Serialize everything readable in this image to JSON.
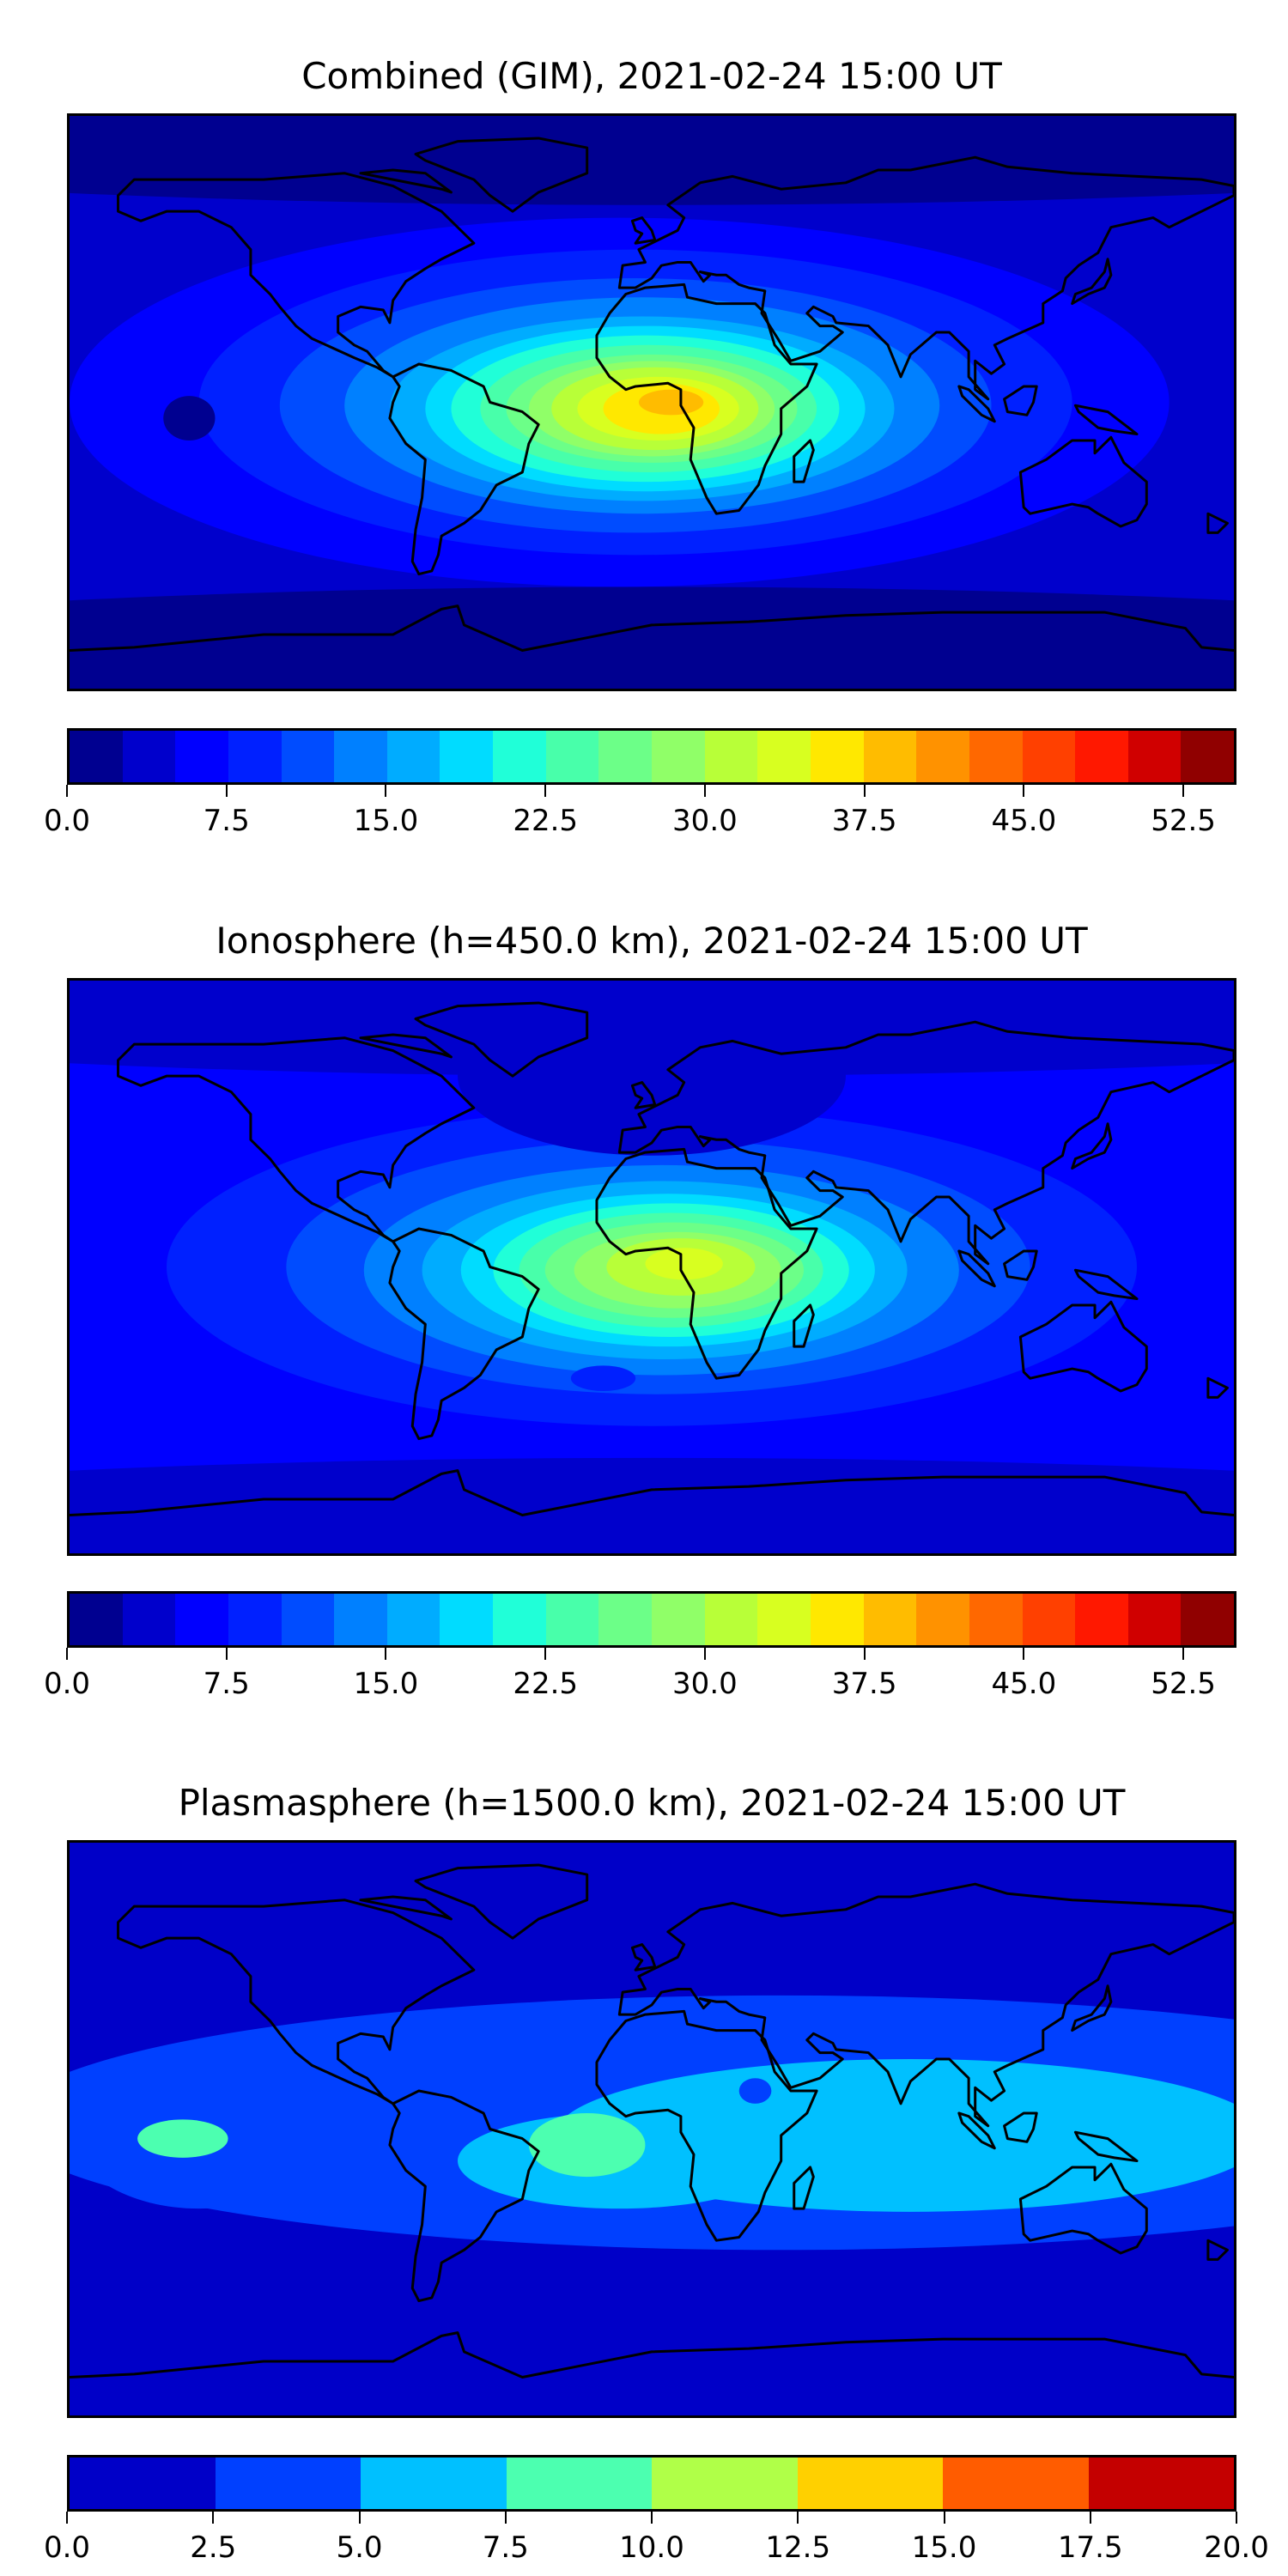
{
  "chart_data": [
    {
      "type": "heatmap",
      "title": "Combined (GIM), 2021-02-24 15:00 UT",
      "xlabel": "",
      "ylabel": "",
      "colorbar": {
        "min": 0,
        "max": 55,
        "step": 2.5,
        "ticks": [
          "0.0",
          "7.5",
          "15.0",
          "22.5",
          "30.0",
          "37.5",
          "45.0",
          "52.5"
        ],
        "tick_values": [
          0,
          7.5,
          15,
          22.5,
          30,
          37.5,
          45,
          52.5
        ],
        "colors": [
          "#000090",
          "#0000cc",
          "#0000ff",
          "#0020ff",
          "#004cff",
          "#0080ff",
          "#00acff",
          "#00dcff",
          "#20ffd8",
          "#48ffaa",
          "#6cff88",
          "#90ff68",
          "#b8ff38",
          "#d8ff20",
          "#ffe800",
          "#ffbc00",
          "#ff9200",
          "#ff6800",
          "#ff4000",
          "#ff1800",
          "#d00000",
          "#900000"
        ]
      },
      "peak_value_approx": 42.5,
      "peak_location": "equatorial Africa / South Atlantic"
    },
    {
      "type": "heatmap",
      "title": "Ionosphere  (h=450.0 km), 2021-02-24 15:00 UT",
      "xlabel": "",
      "ylabel": "",
      "colorbar": {
        "min": 0,
        "max": 55,
        "step": 2.5,
        "ticks": [
          "0.0",
          "7.5",
          "15.0",
          "22.5",
          "30.0",
          "37.5",
          "45.0",
          "52.5"
        ],
        "tick_values": [
          0,
          7.5,
          15,
          22.5,
          30,
          37.5,
          45,
          52.5
        ],
        "colors": [
          "#000090",
          "#0000cc",
          "#0000ff",
          "#0020ff",
          "#004cff",
          "#0080ff",
          "#00acff",
          "#00dcff",
          "#20ffd8",
          "#48ffaa",
          "#6cff88",
          "#90ff68",
          "#b8ff38",
          "#d8ff20",
          "#ffe800",
          "#ffbc00",
          "#ff9200",
          "#ff6800",
          "#ff4000",
          "#ff1800",
          "#d00000",
          "#900000"
        ]
      },
      "peak_value_approx": 35,
      "peak_location": "central Africa"
    },
    {
      "type": "heatmap",
      "title": "Plasmasphere (h=1500.0 km), 2021-02-24 15:00 UT",
      "xlabel": "",
      "ylabel": "",
      "colorbar": {
        "min": 0,
        "max": 20,
        "step": 2.5,
        "ticks": [
          "0.0",
          "2.5",
          "5.0",
          "7.5",
          "10.0",
          "12.5",
          "15.0",
          "17.5",
          "20.0"
        ],
        "tick_values": [
          0,
          2.5,
          5,
          7.5,
          10,
          12.5,
          15,
          17.5,
          20
        ],
        "colors": [
          "#0000c8",
          "#0040ff",
          "#00c0ff",
          "#4cffb0",
          "#b0ff48",
          "#ffd000",
          "#ff5c00",
          "#c40000"
        ]
      },
      "peak_value_approx": 10,
      "peak_location": "South Atlantic / South America"
    }
  ]
}
